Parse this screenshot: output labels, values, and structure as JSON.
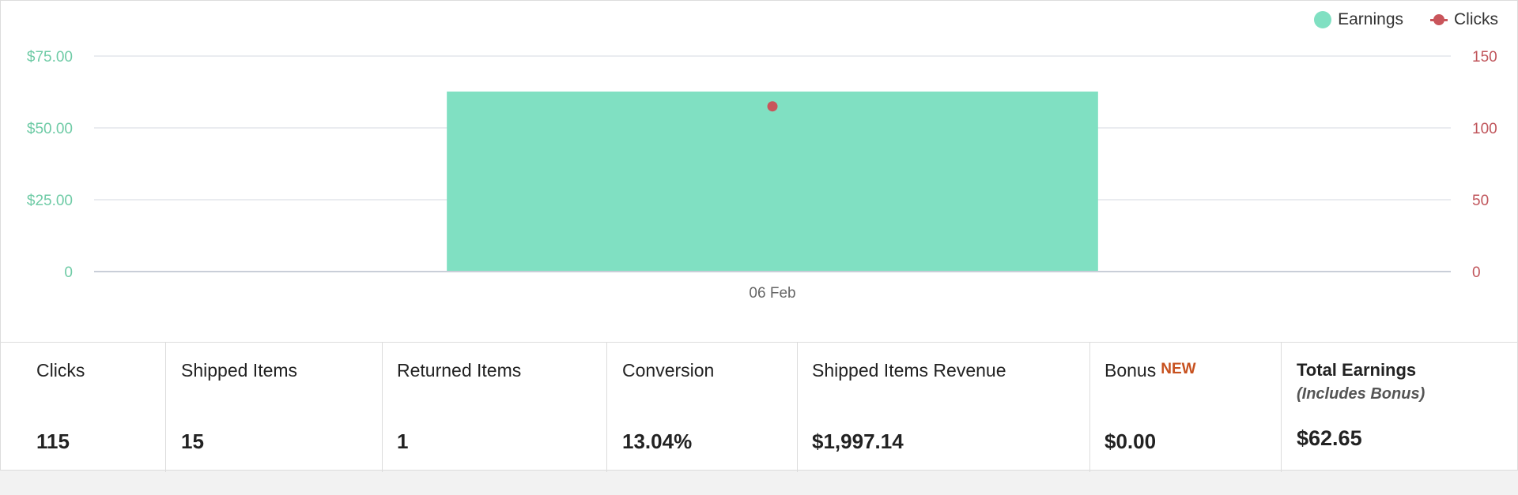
{
  "chart_data": {
    "type": "bar",
    "categories": [
      "06 Feb"
    ],
    "series": [
      {
        "name": "Earnings",
        "type": "bar",
        "axis": "left",
        "values": [
          62.65
        ],
        "color": "#80e0c2"
      },
      {
        "name": "Clicks",
        "type": "line",
        "axis": "right",
        "values": [
          115
        ],
        "color": "#c9555b"
      }
    ],
    "y_left": {
      "ylim": [
        0,
        75
      ],
      "ticks": [
        0,
        25,
        50,
        75
      ],
      "tick_labels": [
        "0",
        "$25.00",
        "$50.00",
        "$75.00"
      ],
      "color": "#6fcba6"
    },
    "y_right": {
      "ylim": [
        0,
        150
      ],
      "ticks": [
        0,
        50,
        100,
        150
      ],
      "tick_labels": [
        "0",
        "50",
        "100",
        "150"
      ],
      "color": "#c0555b"
    },
    "legend_position": "top-right",
    "grid": true
  },
  "legend": {
    "earnings_label": "Earnings",
    "clicks_label": "Clicks"
  },
  "stats": {
    "clicks": {
      "label": "Clicks",
      "value": "115"
    },
    "shipped_items": {
      "label": "Shipped Items",
      "value": "15"
    },
    "returned_items": {
      "label": "Returned Items",
      "value": "1"
    },
    "conversion": {
      "label": "Conversion",
      "value": "13.04%"
    },
    "shipped_items_revenue": {
      "label": "Shipped Items Revenue",
      "value": "$1,997.14"
    },
    "bonus": {
      "label": "Bonus",
      "badge": "NEW",
      "value": "$0.00"
    },
    "total_earnings": {
      "label": "Total Earnings",
      "sublabel": "(Includes Bonus)",
      "value": "$62.65"
    }
  }
}
